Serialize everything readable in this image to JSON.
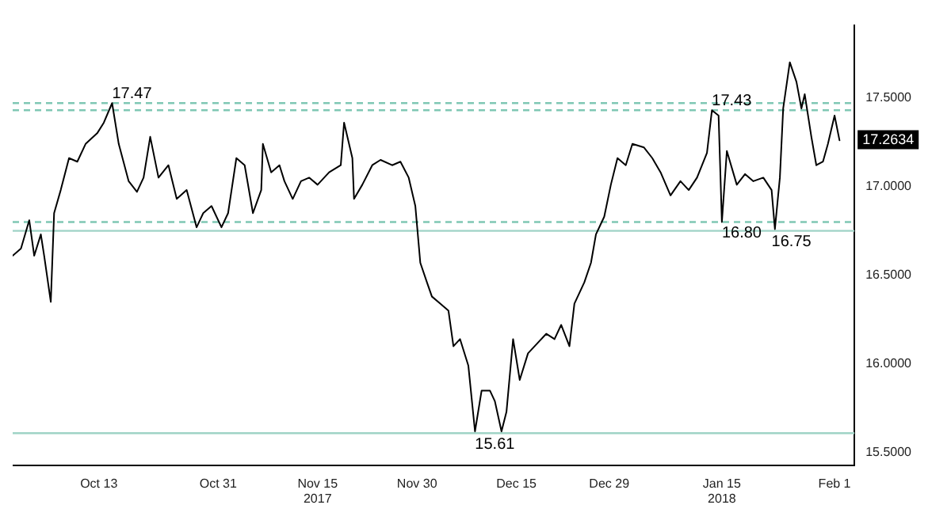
{
  "chart_data": {
    "type": "line",
    "color": "#000000",
    "marker": "none",
    "line_style": "solid",
    "grid": false,
    "legend": false,
    "x": [
      "2017-09-30T00:00",
      "2017-10-01T06:00",
      "2017-10-02T12:00",
      "2017-10-03T06:00",
      "2017-10-04T06:00",
      "2017-10-04T18:00",
      "2017-10-05T18:00",
      "2017-10-06T06:00",
      "2017-10-07T06:00",
      "2017-10-08T12:00",
      "2017-10-09T18:00",
      "2017-10-11T00:00",
      "2017-10-12T18:00",
      "2017-10-13T18:00",
      "2017-10-15T00:00",
      "2017-10-16T00:00",
      "2017-10-17T12:00",
      "2017-10-18T18:00",
      "2017-10-19T18:00",
      "2017-10-20T18:00",
      "2017-10-22T00:00",
      "2017-10-23T12:00",
      "2017-10-24T18:00",
      "2017-10-26T06:00",
      "2017-10-27T18:00",
      "2017-10-28T18:00",
      "2017-10-30T00:00",
      "2017-10-31T12:00",
      "2017-11-01T12:00",
      "2017-11-02T18:00",
      "2017-11-04T00:00",
      "2017-11-05T06:00",
      "2017-11-06T12:00",
      "2017-11-06T18:00",
      "2017-11-08T00:00",
      "2017-11-09T06:00",
      "2017-11-10T00:00",
      "2017-11-11T06:00",
      "2017-11-12T12:00",
      "2017-11-13T18:00",
      "2017-11-15T00:00",
      "2017-11-16T18:00",
      "2017-11-18T12:00",
      "2017-11-19T00:00",
      "2017-11-20T06:00",
      "2017-11-20T12:00",
      "2017-11-21T18:00",
      "2017-11-23T06:00",
      "2017-11-24T12:00",
      "2017-11-26T06:00",
      "2017-11-27T12:00",
      "2017-11-28T18:00",
      "2017-11-29T18:00",
      "2017-11-30T12:00",
      "2017-12-01T12:00",
      "2017-12-02T06:00",
      "2017-12-03T12:00",
      "2017-12-04T18:00",
      "2017-12-05T12:00",
      "2017-12-06T12:00",
      "2017-12-07T18:00",
      "2017-12-08T18:00",
      "2017-12-09T18:00",
      "2017-12-11T00:00",
      "2017-12-11T18:00",
      "2017-12-12T18:00",
      "2017-12-13T12:00",
      "2017-12-14T12:00",
      "2017-12-15T12:00",
      "2017-12-16T18:00",
      "2017-12-18T06:00",
      "2017-12-19T12:00",
      "2017-12-20T18:00",
      "2017-12-21T18:00",
      "2017-12-23T00:00",
      "2017-12-23T18:00",
      "2017-12-25T06:00",
      "2017-12-26T06:00",
      "2017-12-27T00:00",
      "2017-12-28T06:00",
      "2017-12-29T06:00",
      "2017-12-30T06:00",
      "2017-12-31T12:00",
      "2018-01-01T12:00",
      "2018-01-03T06:00",
      "2018-01-04T12:00",
      "2018-01-05T18:00",
      "2018-01-07T06:00",
      "2018-01-08T18:00",
      "2018-01-10T00:00",
      "2018-01-11T06:00",
      "2018-01-12T18:00",
      "2018-01-13T12:00",
      "2018-01-14T12:00",
      "2018-01-15T00:00",
      "2018-01-15T18:00",
      "2018-01-17T06:00",
      "2018-01-18T12:00",
      "2018-01-19T18:00",
      "2018-01-21T06:00",
      "2018-01-22T12:00",
      "2018-01-23T00:00",
      "2018-01-23T18:00",
      "2018-01-24T06:00",
      "2018-01-25T06:00",
      "2018-01-26T06:00",
      "2018-01-27T00:00",
      "2018-01-27T12:00",
      "2018-01-28T12:00",
      "2018-01-29T06:00",
      "2018-01-30T06:00",
      "2018-01-31T00:00",
      "2018-02-01T00:00",
      "2018-02-01T18:00"
    ],
    "values": [
      16.61,
      16.65,
      16.81,
      16.61,
      16.73,
      16.61,
      16.35,
      16.85,
      16.98,
      17.16,
      17.14,
      17.24,
      17.3,
      17.36,
      17.47,
      17.24,
      17.03,
      16.97,
      17.05,
      17.28,
      17.05,
      17.12,
      16.93,
      16.98,
      16.77,
      16.85,
      16.89,
      16.77,
      16.85,
      17.16,
      17.12,
      16.85,
      16.98,
      17.24,
      17.08,
      17.12,
      17.03,
      16.93,
      17.03,
      17.05,
      17.01,
      17.08,
      17.12,
      17.36,
      17.16,
      16.93,
      17.01,
      17.12,
      17.15,
      17.12,
      17.14,
      17.05,
      16.89,
      16.57,
      16.46,
      16.38,
      16.34,
      16.3,
      16.1,
      16.14,
      15.99,
      15.62,
      15.85,
      15.85,
      15.79,
      15.62,
      15.73,
      16.14,
      15.91,
      16.06,
      16.12,
      16.17,
      16.14,
      16.22,
      16.1,
      16.34,
      16.46,
      16.57,
      16.73,
      16.83,
      17.01,
      17.16,
      17.12,
      17.24,
      17.22,
      17.16,
      17.08,
      16.95,
      17.03,
      16.98,
      17.05,
      17.19,
      17.43,
      17.4,
      16.8,
      17.2,
      17.01,
      17.07,
      17.03,
      17.05,
      16.98,
      16.76,
      17.05,
      17.44,
      17.7,
      17.59,
      17.44,
      17.52,
      17.28,
      17.12,
      17.14,
      17.24,
      17.4,
      17.26
    ],
    "xlim": [
      "2017-09-30",
      "2018-02-04"
    ],
    "xticks": [
      {
        "value": "2017-10-13",
        "label": "Oct 13"
      },
      {
        "value": "2017-10-31",
        "label": "Oct 31"
      },
      {
        "value": "2017-11-15",
        "label": "Nov 15\n2017"
      },
      {
        "value": "2017-11-30",
        "label": "Nov 30"
      },
      {
        "value": "2017-12-15",
        "label": "Dec 15"
      },
      {
        "value": "2017-12-29",
        "label": "Dec 29"
      },
      {
        "value": "2018-01-15",
        "label": "Jan 15\n2018"
      },
      {
        "value": "2018-02-01",
        "label": "Feb 1"
      }
    ],
    "ylim": [
      15.43,
      17.91
    ],
    "yticks": [
      {
        "value": 15.5,
        "label": "15.5000"
      },
      {
        "value": 16,
        "label": "16.0000"
      },
      {
        "value": 16.5,
        "label": "16.5000"
      },
      {
        "value": 17,
        "label": "17.0000"
      },
      {
        "value": 17.5,
        "label": "17.5000"
      }
    ],
    "ref_lines": [
      {
        "axis": "y",
        "value": 17.47,
        "color": "#7fc7b4",
        "line_style": "dashed"
      },
      {
        "axis": "y",
        "value": 17.43,
        "color": "#7fc7b4",
        "line_style": "dashed"
      },
      {
        "axis": "y",
        "value": 16.8,
        "color": "#7fc7b4",
        "line_style": "dashed"
      },
      {
        "axis": "y",
        "value": 16.75,
        "color": "#9fd3c6",
        "line_style": "solid"
      },
      {
        "axis": "y",
        "value": 15.61,
        "color": "#9fd3c6",
        "line_style": "solid"
      }
    ],
    "annotations": [
      {
        "text": "17.47",
        "x": "2017-10-15T00:00",
        "y": 17.47
      },
      {
        "text": "17.43",
        "x": "2018-01-13T12:00",
        "y": 17.43
      },
      {
        "text": "16.80",
        "x": "2018-01-15T00:00",
        "y": 16.8
      },
      {
        "text": "16.75",
        "x": "2018-01-22T12:00",
        "y": 16.75
      },
      {
        "text": "15.61",
        "x": "2017-12-08T18:00",
        "y": 15.61
      },
      {
        "text": "17.2634",
        "x": "2018-02-01T18:00",
        "y": 17.2634
      }
    ]
  }
}
